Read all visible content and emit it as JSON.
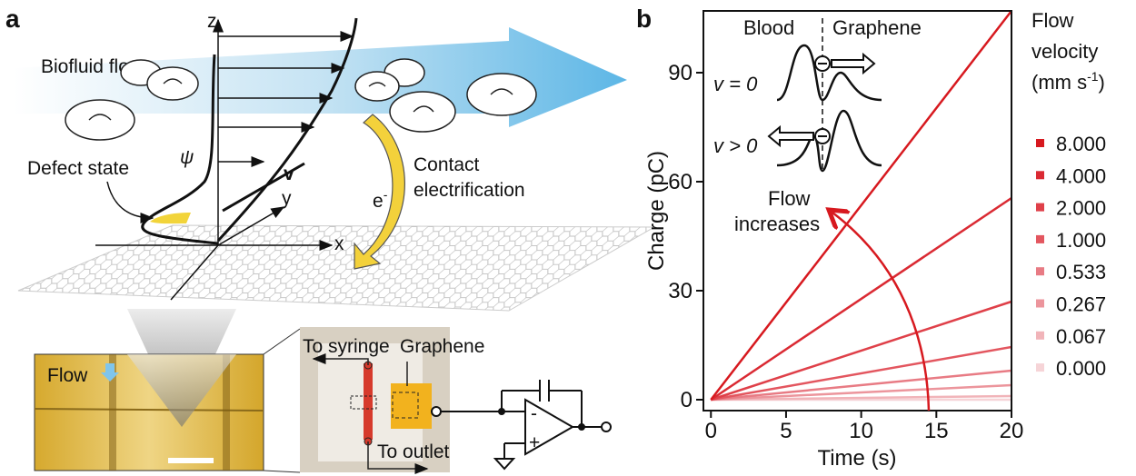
{
  "panel_a": {
    "label": "a",
    "z_axis": "z",
    "y_axis": "y",
    "x_axis": "x",
    "flow_label": "Biofluid flow",
    "psi": "ψ",
    "velocity": "v",
    "defect_label": "Defect state",
    "electron": {
      "base": "e",
      "sup": "-"
    },
    "contact_label": [
      "Contact",
      "electrification"
    ],
    "micro_flow": "Flow",
    "syringe_label": "To syringe",
    "graphene_label": "Graphene",
    "outlet_label": "To outlet",
    "opamp_minus": "-",
    "opamp_plus": "+"
  },
  "chart_data": {
    "type": "line",
    "label": "b",
    "x_label": "Time (s)",
    "y_label": "Charge (pC)",
    "x": [
      0,
      20
    ],
    "xlim": [
      -0.5,
      20
    ],
    "xticks": [
      0,
      5,
      10,
      15,
      20
    ],
    "ylim": [
      -3,
      107
    ],
    "yticks": [
      0,
      30,
      60,
      90
    ],
    "legend_title": [
      "Flow",
      "velocity"
    ],
    "legend_unit": {
      "text": "(mm s",
      "sup": "-1",
      "end": ")"
    },
    "inset": {
      "left": "Blood",
      "right": "Graphene",
      "rest": "v = 0",
      "moving": "v > 0",
      "arrow_label": [
        "Flow",
        "increases"
      ]
    },
    "series": [
      {
        "name": "8.000",
        "color": "#d7191f",
        "values": [
          0,
          107
        ]
      },
      {
        "name": "4.000",
        "color": "#da2a33",
        "values": [
          0,
          55.5
        ]
      },
      {
        "name": "2.000",
        "color": "#df4049",
        "values": [
          0,
          27
        ]
      },
      {
        "name": "1.000",
        "color": "#e3565f",
        "values": [
          0,
          14.5
        ]
      },
      {
        "name": "0.533",
        "color": "#e87b84",
        "values": [
          0,
          8
        ]
      },
      {
        "name": "0.267",
        "color": "#ec959c",
        "values": [
          0,
          4
        ]
      },
      {
        "name": "0.067",
        "color": "#f1b4b9",
        "values": [
          0,
          1
        ]
      },
      {
        "name": "0.000",
        "color": "#f6d4d7",
        "values": [
          0,
          0
        ]
      }
    ]
  }
}
